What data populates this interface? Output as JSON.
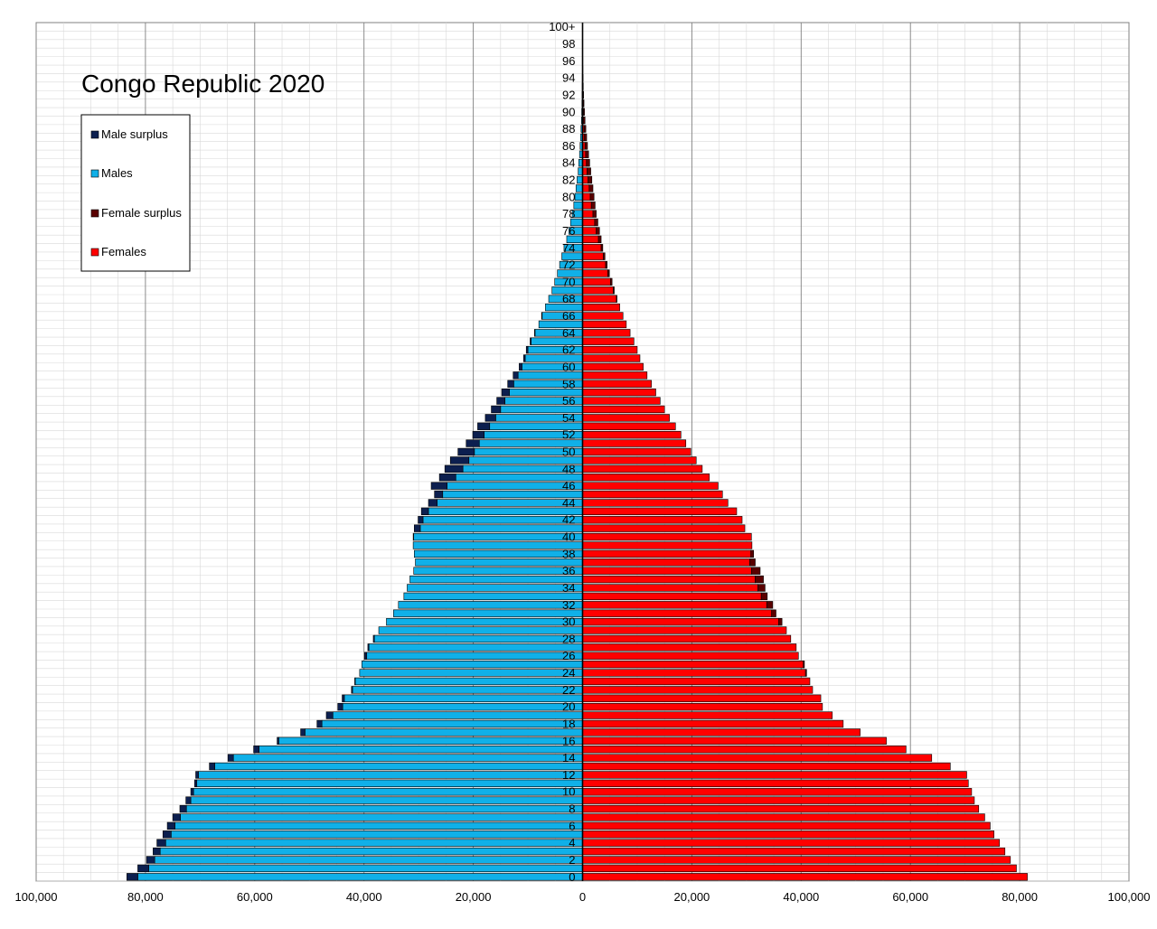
{
  "chart_data": {
    "type": "bar",
    "orientation": "horizontal-pyramid",
    "title": "Congo Republic 2020",
    "xlim": [
      -100000,
      100000
    ],
    "x_ticks": [
      -100000,
      -80000,
      -60000,
      -40000,
      -20000,
      0,
      20000,
      40000,
      60000,
      80000,
      100000
    ],
    "x_tick_labels": [
      "100,000",
      "80,000",
      "60,000",
      "40,000",
      "20,000",
      "0",
      "20,000",
      "40,000",
      "60,000",
      "80,000",
      "100,000"
    ],
    "grid": true,
    "legend_position": "top-left",
    "legend": [
      {
        "label": "Male surplus",
        "color": "#0c1f4f"
      },
      {
        "label": "Males",
        "color": "#10b0e8"
      },
      {
        "label": "Female surplus",
        "color": "#5a0000"
      },
      {
        "label": "Females",
        "color": "#ff0000"
      }
    ],
    "ages": [
      "0",
      "1",
      "2",
      "3",
      "4",
      "5",
      "6",
      "7",
      "8",
      "9",
      "10",
      "11",
      "12",
      "13",
      "14",
      "15",
      "16",
      "17",
      "18",
      "19",
      "20",
      "21",
      "22",
      "23",
      "24",
      "25",
      "26",
      "27",
      "28",
      "29",
      "30",
      "31",
      "32",
      "33",
      "34",
      "35",
      "36",
      "37",
      "38",
      "39",
      "40",
      "41",
      "42",
      "43",
      "44",
      "45",
      "46",
      "47",
      "48",
      "49",
      "50",
      "51",
      "52",
      "53",
      "54",
      "55",
      "56",
      "57",
      "58",
      "59",
      "60",
      "61",
      "62",
      "63",
      "64",
      "65",
      "66",
      "67",
      "68",
      "69",
      "70",
      "71",
      "72",
      "73",
      "74",
      "75",
      "76",
      "77",
      "78",
      "79",
      "80",
      "81",
      "82",
      "83",
      "84",
      "85",
      "86",
      "87",
      "88",
      "89",
      "90",
      "91",
      "92",
      "93",
      "94",
      "95",
      "96",
      "97",
      "98",
      "99",
      "100+"
    ],
    "age_tick_labels": [
      "0",
      "2",
      "4",
      "6",
      "8",
      "10",
      "12",
      "14",
      "16",
      "18",
      "20",
      "22",
      "24",
      "26",
      "28",
      "30",
      "32",
      "34",
      "36",
      "38",
      "40",
      "42",
      "44",
      "46",
      "48",
      "50",
      "52",
      "54",
      "56",
      "58",
      "60",
      "62",
      "64",
      "66",
      "68",
      "70",
      "72",
      "74",
      "76",
      "78",
      "80",
      "82",
      "84",
      "86",
      "88",
      "90",
      "92",
      "94",
      "96",
      "98",
      "100+"
    ],
    "series": [
      {
        "name": "Males",
        "values": [
          83400,
          81400,
          79800,
          78600,
          77900,
          76800,
          76000,
          75000,
          73700,
          72600,
          71700,
          71000,
          70800,
          68300,
          64900,
          60200,
          55900,
          51600,
          48600,
          46900,
          44800,
          44000,
          42300,
          41700,
          40800,
          40400,
          39900,
          39300,
          38300,
          37300,
          35900,
          34600,
          33700,
          32700,
          32100,
          31600,
          30900,
          30600,
          30800,
          31000,
          31000,
          30800,
          30100,
          29500,
          28200,
          27100,
          27700,
          26200,
          25200,
          24200,
          22800,
          21300,
          20100,
          19200,
          17800,
          16700,
          15700,
          14800,
          13700,
          12700,
          11600,
          10800,
          10300,
          9600,
          8800,
          8000,
          7500,
          6800,
          6200,
          5600,
          5100,
          4600,
          4200,
          3800,
          3400,
          2900,
          2500,
          2200,
          1900,
          1600,
          1400,
          1200,
          1000,
          800,
          700,
          550,
          450,
          350,
          280,
          200,
          160,
          120,
          90,
          70,
          50,
          35,
          25,
          18,
          12,
          8,
          6
        ]
      },
      {
        "name": "Females",
        "values": [
          81400,
          79400,
          78300,
          77300,
          76300,
          75300,
          74600,
          73600,
          72500,
          71700,
          71200,
          70600,
          70300,
          67300,
          63900,
          59200,
          55600,
          50800,
          47700,
          45700,
          43900,
          43600,
          42100,
          41600,
          41000,
          40600,
          39500,
          39100,
          38100,
          37300,
          36500,
          35400,
          34800,
          33800,
          33400,
          33100,
          32500,
          31600,
          31300,
          31000,
          30900,
          29700,
          29200,
          28200,
          26600,
          25600,
          24800,
          23200,
          21900,
          20800,
          19800,
          18900,
          18000,
          17000,
          15900,
          15000,
          14200,
          13400,
          12600,
          11800,
          11100,
          10500,
          10000,
          9400,
          8700,
          8000,
          7400,
          6800,
          6300,
          5800,
          5400,
          4900,
          4500,
          4100,
          3700,
          3400,
          3100,
          2800,
          2500,
          2300,
          2100,
          1900,
          1700,
          1500,
          1300,
          1100,
          900,
          750,
          600,
          450,
          350,
          260,
          190,
          130,
          90,
          60,
          40,
          25,
          15,
          10,
          6
        ]
      }
    ]
  }
}
